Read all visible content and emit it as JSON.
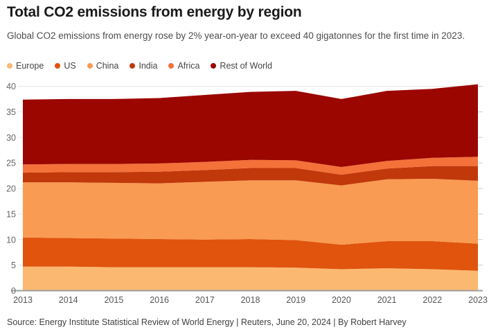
{
  "header": {
    "title": "Total CO2 emissions from energy by region",
    "subtitle": "Global CO2 emissions from energy rose by 2% year-on-year to exceed 40 gigatonnes for the first time in 2023."
  },
  "footer": {
    "source": "Source: Energy Institute Statistical Review of World Energy | Reuters, June 20, 2024 | By Robert Harvey"
  },
  "colors": {
    "background": "#ffffff",
    "title": "#1a1a1a",
    "subtitle": "#4d4d4d",
    "axis_label": "#666666",
    "x_label": "#555555",
    "gridline": "#e7e7e7",
    "axis_line": "#9d9d9d",
    "right_tick": "#cccccc",
    "footer": "#404040"
  },
  "chart_data": {
    "type": "area",
    "stacked": true,
    "title": "Total CO2 emissions from energy by region",
    "unit": "gigatonnes CO2",
    "xlabel": "",
    "ylabel": "",
    "grid": true,
    "legend_position": "top",
    "ylim": [
      0,
      40
    ],
    "yticks": [
      0,
      5,
      10,
      15,
      20,
      25,
      30,
      35,
      40
    ],
    "categories": [
      "2013",
      "2014",
      "2015",
      "2016",
      "2017",
      "2018",
      "2019",
      "2020",
      "2021",
      "2022",
      "2023"
    ],
    "series": [
      {
        "name": "Europe",
        "color": "#FBB871",
        "values": [
          4.7,
          4.7,
          4.6,
          4.6,
          4.6,
          4.6,
          4.5,
          4.2,
          4.4,
          4.2,
          3.9
        ]
      },
      {
        "name": "US",
        "color": "#E0540E",
        "values": [
          5.7,
          5.6,
          5.6,
          5.5,
          5.4,
          5.5,
          5.4,
          4.8,
          5.3,
          5.5,
          5.3
        ]
      },
      {
        "name": "China",
        "color": "#F99B52",
        "values": [
          10.8,
          10.9,
          10.9,
          10.9,
          11.3,
          11.5,
          11.7,
          11.6,
          12.1,
          12.2,
          12.3
        ]
      },
      {
        "name": "India",
        "color": "#C1380B",
        "values": [
          1.9,
          2.0,
          2.1,
          2.3,
          2.3,
          2.4,
          2.4,
          2.1,
          2.1,
          2.5,
          2.9
        ]
      },
      {
        "name": "Africa",
        "color": "#F4713A",
        "values": [
          1.6,
          1.6,
          1.6,
          1.6,
          1.6,
          1.6,
          1.5,
          1.5,
          1.5,
          1.6,
          1.8
        ]
      },
      {
        "name": "Rest of World",
        "color": "#9B0600",
        "values": [
          12.7,
          12.7,
          12.7,
          12.8,
          13.1,
          13.3,
          13.6,
          13.3,
          13.7,
          13.5,
          14.2
        ]
      }
    ],
    "totals": [
      37.4,
      37.5,
      37.5,
      37.7,
      38.3,
      38.9,
      39.1,
      37.5,
      39.1,
      39.5,
      40.4
    ]
  }
}
